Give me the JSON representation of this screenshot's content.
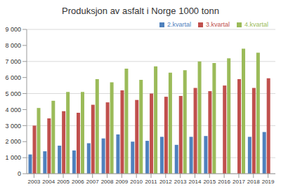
{
  "chart_data": {
    "type": "bar",
    "title": "Produksjon av asfalt i Norge 1000 tonn",
    "categories": [
      "2003",
      "2004",
      "2005",
      "2006",
      "2007",
      "2008",
      "2009",
      "2010",
      "2011",
      "2012",
      "2013",
      "2014",
      "2015",
      "2016",
      "2017",
      "2018",
      "2019"
    ],
    "series": [
      {
        "name": "2.kvartal",
        "color": "#4f81bd",
        "values": [
          1200,
          1400,
          1750,
          1450,
          1900,
          2200,
          2450,
          2000,
          2050,
          2300,
          1800,
          2300,
          2350,
          null,
          null,
          2300,
          2600
        ]
      },
      {
        "name": "3.kvartal",
        "color": "#c0504d",
        "values": [
          3000,
          3450,
          3900,
          3800,
          4300,
          4450,
          5200,
          4600,
          5000,
          4800,
          4850,
          5350,
          5150,
          5500,
          5900,
          5350,
          5950
        ]
      },
      {
        "name": "4.kvartal",
        "color": "#9bbb59",
        "values": [
          4100,
          4550,
          5100,
          5100,
          5900,
          5700,
          6550,
          5850,
          6700,
          6300,
          6450,
          7000,
          6900,
          7200,
          7800,
          7550,
          null
        ]
      }
    ],
    "ylim": [
      0,
      9000
    ],
    "yticks": [
      0,
      {
        "value": 1000,
        "label": "1 000"
      },
      {
        "value": 2000,
        "label": "2 000"
      },
      {
        "value": 3000,
        "label": "3 000"
      },
      {
        "value": 4000,
        "label": "4 000"
      },
      {
        "value": 5000,
        "label": "5 000"
      },
      {
        "value": 6000,
        "label": "6 000"
      },
      {
        "value": 7000,
        "label": "7 000"
      },
      {
        "value": 8000,
        "label": "8 000"
      },
      {
        "value": 9000,
        "label": "9 000"
      }
    ],
    "grid": true,
    "legend": "top"
  }
}
